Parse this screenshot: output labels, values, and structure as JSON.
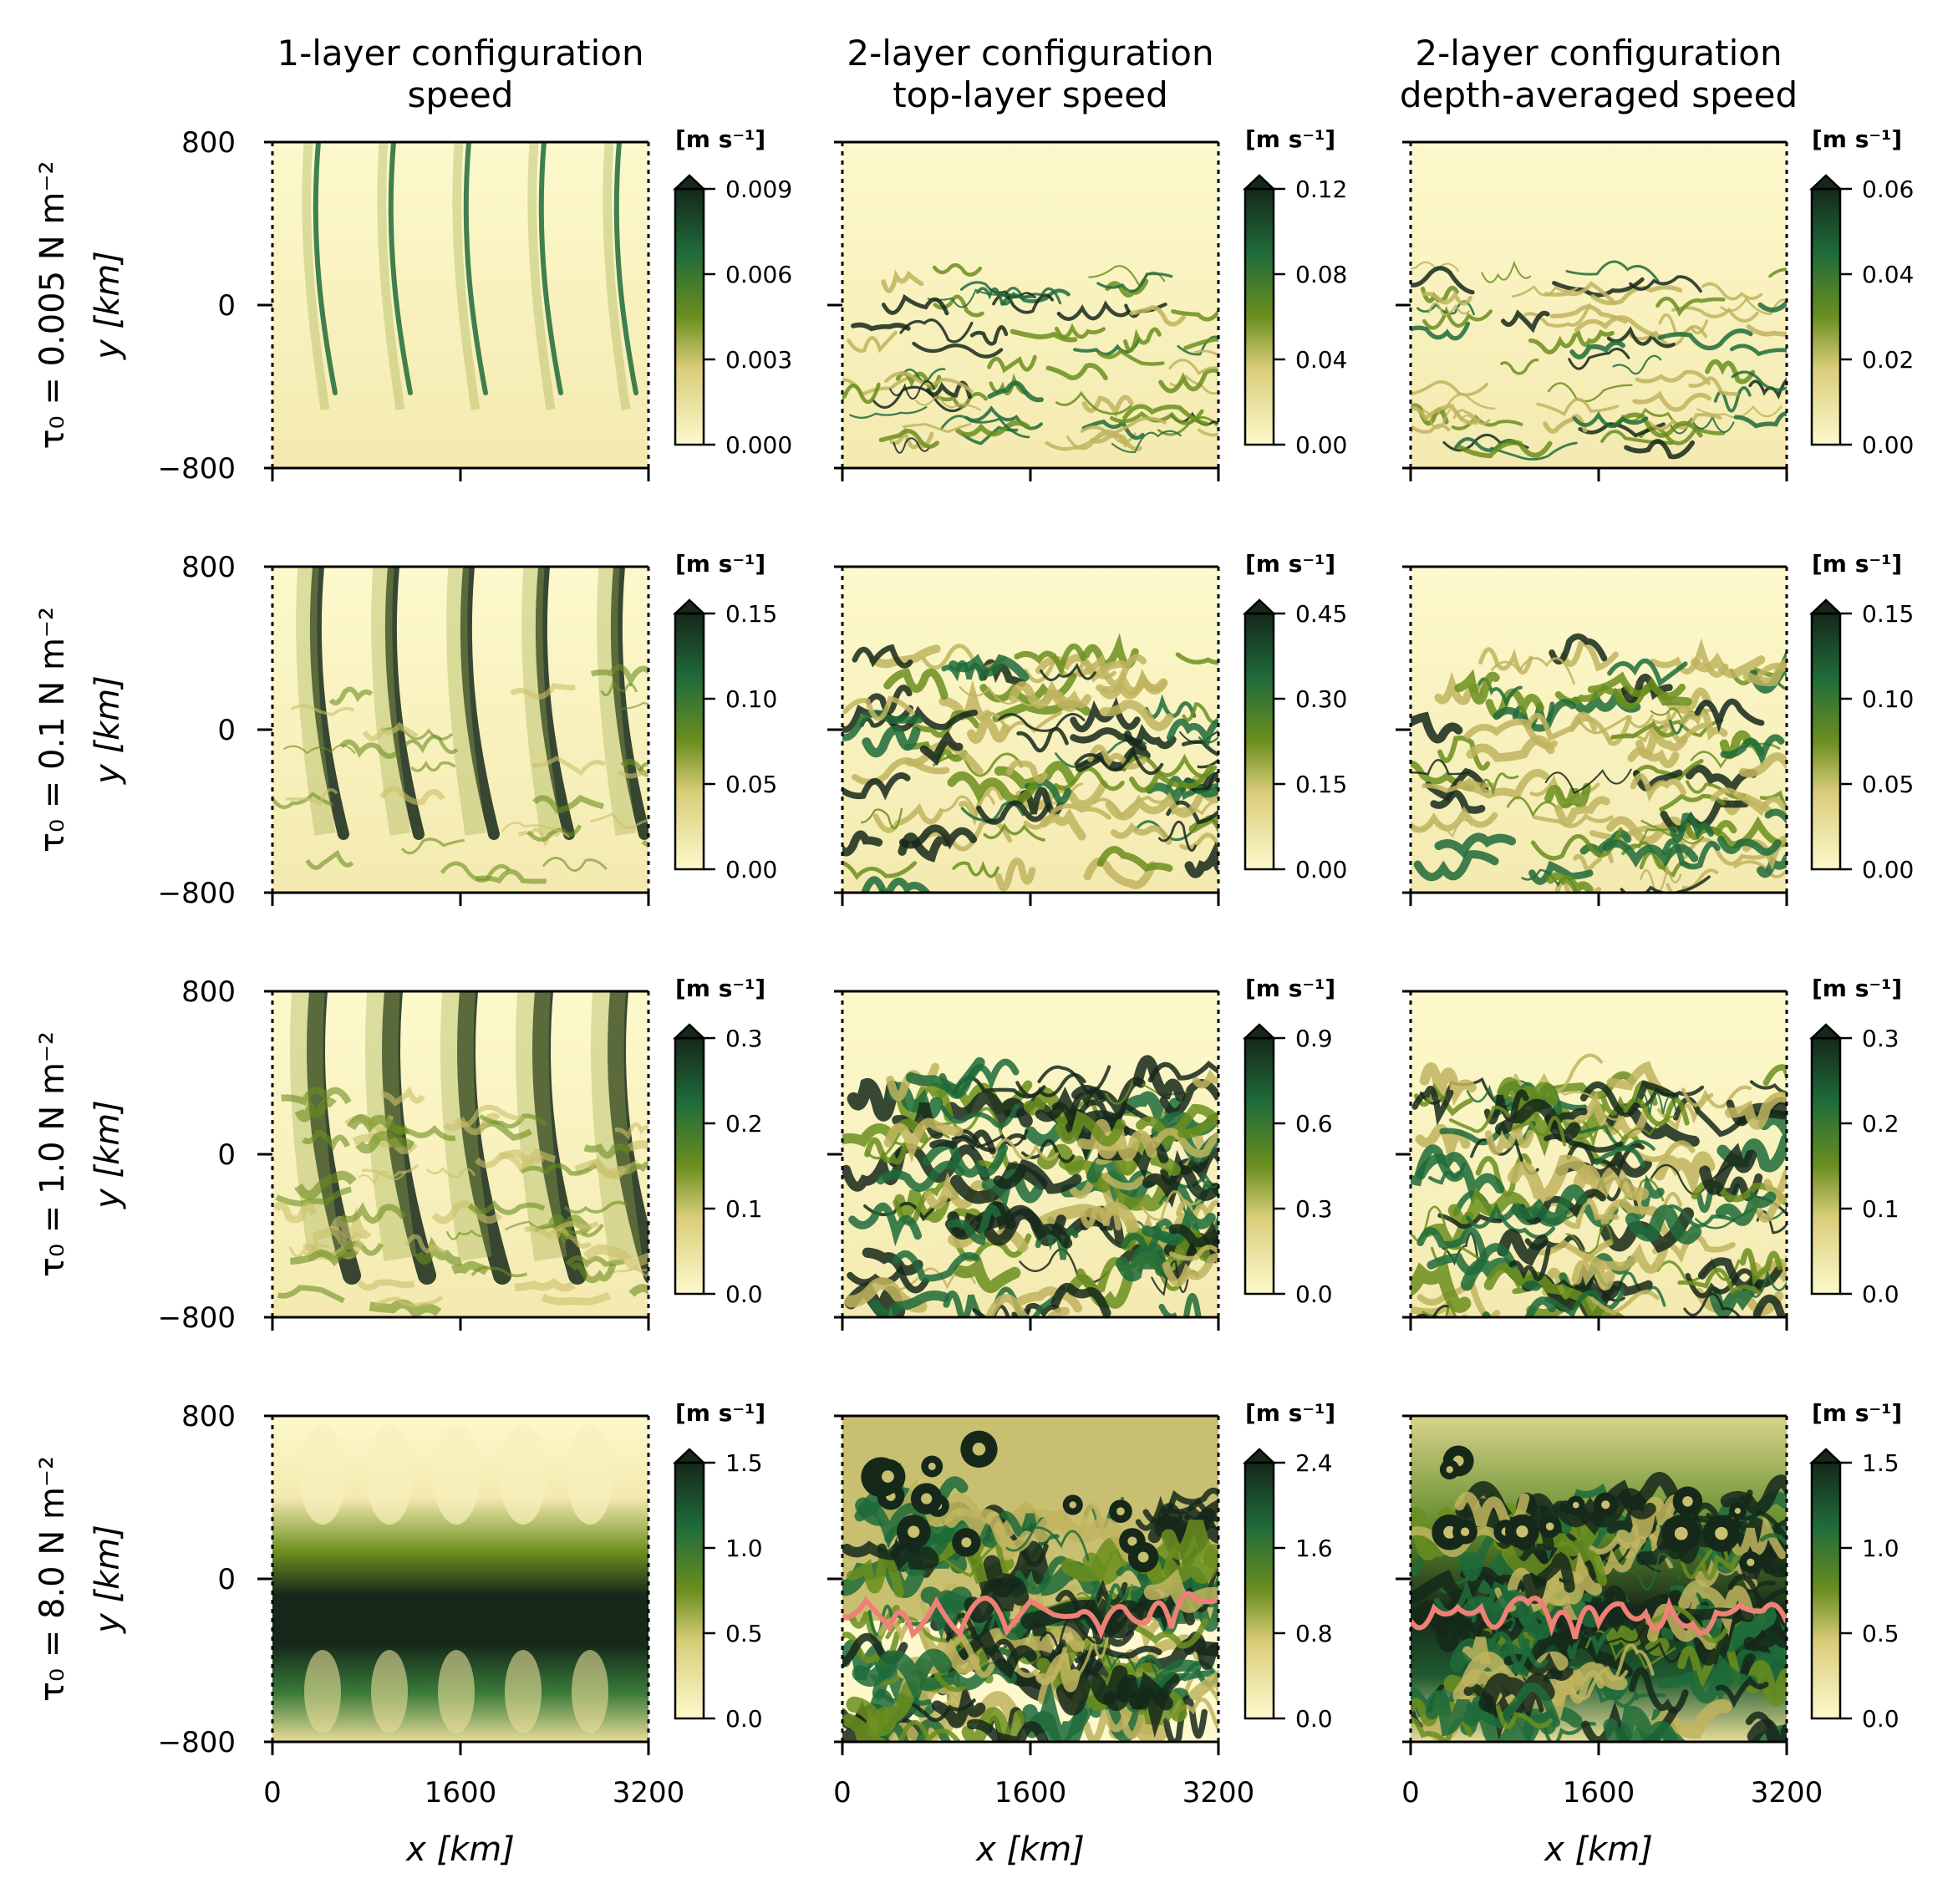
{
  "column_titles": [
    {
      "line1": "1-layer configuration",
      "line2": "speed"
    },
    {
      "line1": "2-layer configuration",
      "line2": "top-layer speed"
    },
    {
      "line1": "2-layer configuration",
      "line2": "depth-averaged speed"
    }
  ],
  "row_labels": [
    {
      "tau_label": "τ₀ = 0.005 N m⁻²"
    },
    {
      "tau_label": "τ₀ = 0.1 N m⁻²"
    },
    {
      "tau_label": "τ₀ = 1.0 N m⁻²"
    },
    {
      "tau_label": "τ₀ = 8.0 N m⁻²"
    }
  ],
  "y_axis_label": "y [km]",
  "x_axis_label": "x [km]",
  "colorbar_unit": "[m s⁻¹]",
  "colors": {
    "colormap_low": "#fdf9cc",
    "colormap_mid": "#6b8e1f",
    "colormap_green": "#1f6b3a",
    "colormap_high": "#15281a",
    "contour_line": "#f08076"
  },
  "chart_data": {
    "type": "heatmap",
    "x_ticks": [
      "0",
      "1600",
      "3200"
    ],
    "y_ticks": [
      "800",
      "0",
      "−800"
    ],
    "xlim": [
      0,
      3200
    ],
    "ylim": [
      -800,
      800
    ],
    "colorbar_ticks": [
      [
        [
          "0.009",
          "0.006",
          "0.003",
          "0.000"
        ],
        [
          "0.12",
          "0.08",
          "0.04",
          "0.00"
        ],
        [
          "0.06",
          "0.04",
          "0.02",
          "0.00"
        ]
      ],
      [
        [
          "0.15",
          "0.10",
          "0.05",
          "0.00"
        ],
        [
          "0.45",
          "0.30",
          "0.15",
          "0.00"
        ],
        [
          "0.15",
          "0.10",
          "0.05",
          "0.00"
        ]
      ],
      [
        [
          "0.3",
          "0.2",
          "0.1",
          "0.0"
        ],
        [
          "0.9",
          "0.6",
          "0.3",
          "0.0"
        ],
        [
          "0.3",
          "0.2",
          "0.1",
          "0.0"
        ]
      ],
      [
        [
          "1.5",
          "1.0",
          "0.5",
          "0.0"
        ],
        [
          "2.4",
          "1.6",
          "0.8",
          "0.0"
        ],
        [
          "1.5",
          "1.0",
          "0.5",
          "0.0"
        ]
      ]
    ]
  }
}
